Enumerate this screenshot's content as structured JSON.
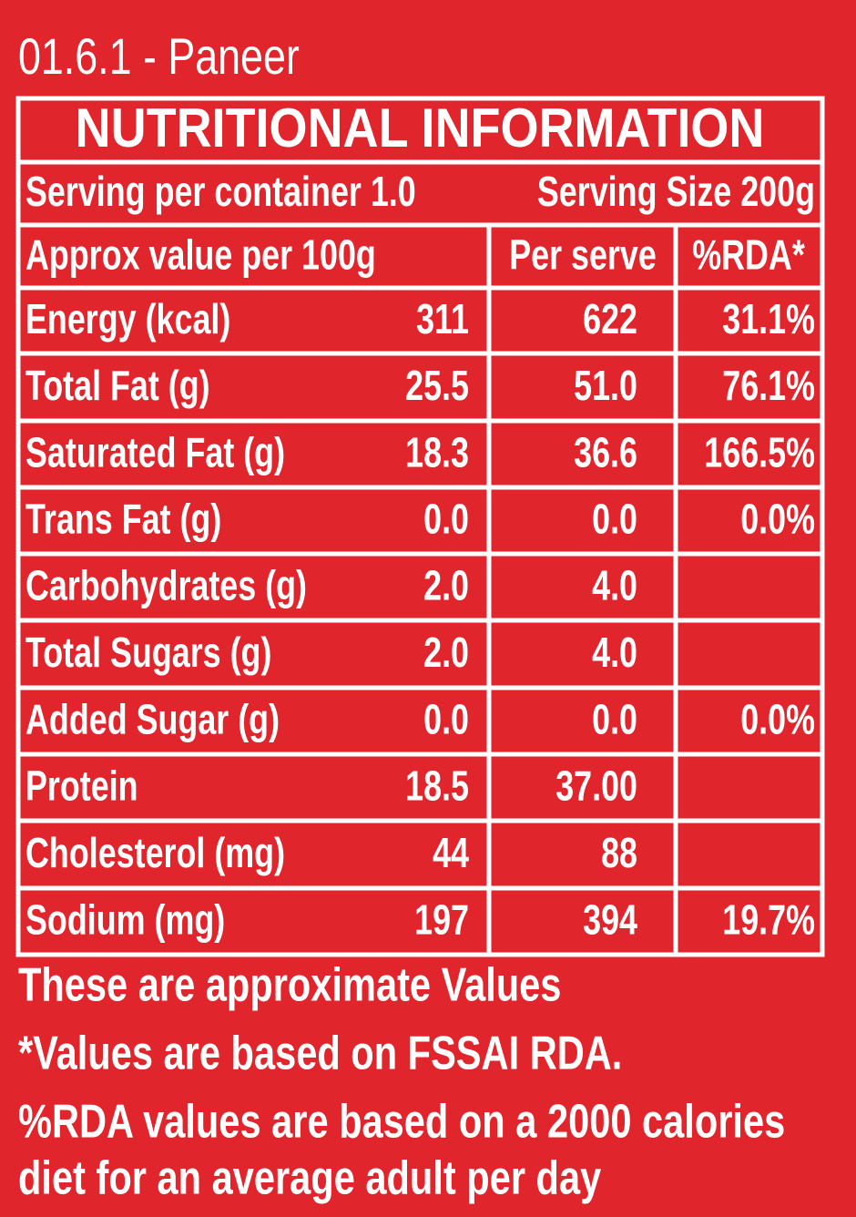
{
  "title": "01.6.1 - Paneer",
  "table": {
    "heading": "NUTRITIONAL INFORMATION",
    "serving_per_container": "Serving per container 1.0",
    "serving_size": "Serving Size 200g",
    "columns": [
      "Approx value per 100g",
      "Per serve",
      "%RDA*"
    ],
    "rows": [
      {
        "name": "Energy (kcal)",
        "per_100g": "311",
        "per_serve": "622",
        "rda": "31.1%"
      },
      {
        "name": "Total Fat (g)",
        "per_100g": "25.5",
        "per_serve": "51.0",
        "rda": "76.1%"
      },
      {
        "name": "Saturated Fat (g)",
        "per_100g": "18.3",
        "per_serve": "36.6",
        "rda": "166.5%"
      },
      {
        "name": "Trans Fat (g)",
        "per_100g": "0.0",
        "per_serve": "0.0",
        "rda": "0.0%"
      },
      {
        "name": "Carbohydrates (g)",
        "per_100g": "2.0",
        "per_serve": "4.0"
      },
      {
        "name": "Total Sugars (g)",
        "per_100g": "2.0",
        "per_serve": "4.0"
      },
      {
        "name": "Added Sugar (g)",
        "per_100g": "0.0",
        "per_serve": "0.0",
        "rda": "0.0%"
      },
      {
        "name": "Protein",
        "per_100g": "18.5",
        "per_serve": "37.00"
      },
      {
        "name": "Cholesterol (mg)",
        "per_100g": "44",
        "per_serve": "88"
      },
      {
        "name": "Sodium (mg)",
        "per_100g": "197",
        "per_serve": "394",
        "rda": "19.7%"
      }
    ]
  },
  "notes": [
    "These are approximate Values",
    "*Values are based on FSSAI RDA.",
    "%RDA values are based on a 2000 calories",
    "diet for an average adult per day"
  ]
}
